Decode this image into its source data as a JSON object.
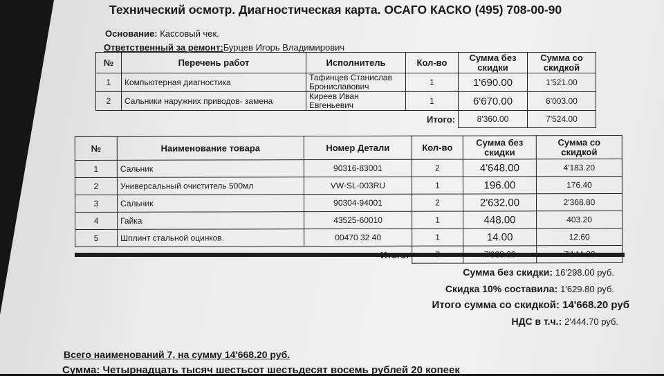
{
  "title": "Технический осмотр. Диагностическая карта. ОСАГО КАСКО (495) 708-00-90",
  "basis": {
    "label": "Основание:",
    "value": "Кассовый чек."
  },
  "responsible": {
    "label": "Ответственный за ремонт:",
    "value": "Бурцев Игорь Владимирович"
  },
  "works": {
    "headers": [
      "№",
      "Перечень работ",
      "Исполнитель",
      "Кол-во",
      "Сумма без скидки",
      "Сумма со скидкой"
    ],
    "rows": [
      {
        "n": "1",
        "name": "Компьютерная диагностика",
        "performer": "Тафинцев Станислав Брониславович",
        "qty": "1",
        "sum": "1'690.00",
        "disc": "1'521.00"
      },
      {
        "n": "2",
        "name": "Сальники наружних приводов- замена",
        "performer": "Киреев Иван Евгеньевич",
        "qty": "1",
        "sum": "6'670.00",
        "disc": "6'003.00"
      }
    ],
    "total_label": "Итого:",
    "total_sum": "8'360.00",
    "total_disc": "7'524.00"
  },
  "goods": {
    "headers": [
      "№",
      "Наименование товара",
      "Номер Детали",
      "Кол-во",
      "Сумма без скидки",
      "Сумма со скидкой"
    ],
    "rows": [
      {
        "n": "1",
        "name": "Сальник",
        "part": "90316-83001",
        "qty": "2",
        "sum": "4'648.00",
        "disc": "4'183.20"
      },
      {
        "n": "2",
        "name": "Универсальный очиститель 500мл",
        "part": "VW-SL-003RU",
        "qty": "1",
        "sum": "196.00",
        "disc": "176.40"
      },
      {
        "n": "3",
        "name": "Сальник",
        "part": "90304-94001",
        "qty": "2",
        "sum": "2'632.00",
        "disc": "2'368.80"
      },
      {
        "n": "4",
        "name": "Гайка",
        "part": "43525-60010",
        "qty": "1",
        "sum": "448.00",
        "disc": "403.20"
      },
      {
        "n": "5",
        "name": "Шплинт  стальной  оцинков.",
        "part": "00470 32 40",
        "qty": "1",
        "sum": "14.00",
        "disc": "12.60"
      }
    ],
    "total_label": "Итого:",
    "total_qty": "7",
    "total_sum": "7'938.00",
    "total_disc": "7'144.20"
  },
  "summary": [
    {
      "label": "Сумма без скидки:",
      "value": "16'298.00 руб."
    },
    {
      "label": "Скидка 10% составила:",
      "value": "1'629.80 руб."
    },
    {
      "label": "Итого сумма со скидкой:",
      "value": "14'668.20 руб"
    },
    {
      "label": "НДС в т.ч.:",
      "value": "2'444.70 руб."
    }
  ],
  "footer": {
    "total_items": "Всего наименований 7, на сумму 14'668.20 руб.",
    "in_words": "Сумма: Четырнадцать тысяч шестьсот шестьдесят восемь рублей 20 копеек"
  }
}
